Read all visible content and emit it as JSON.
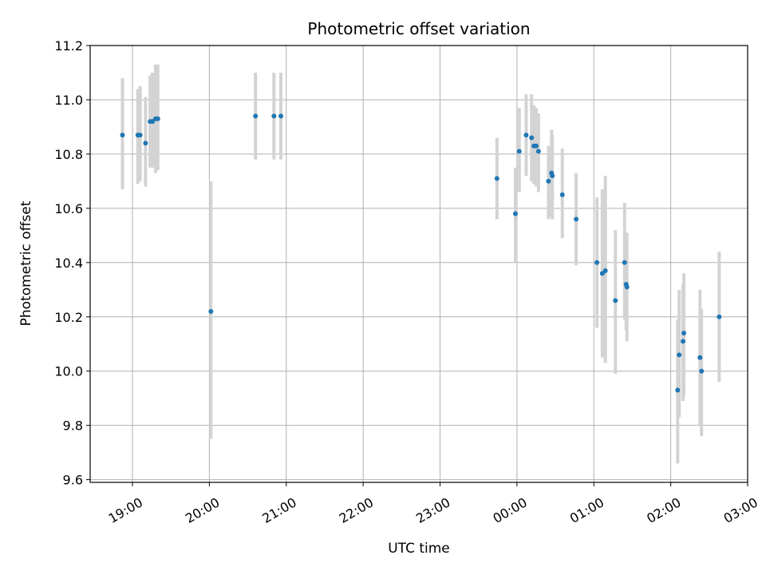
{
  "chart_data": {
    "type": "scatter",
    "title": "Photometric offset variation",
    "xlabel": "UTC time",
    "ylabel": "Photometric offset",
    "grid": true,
    "legend": "none",
    "x_unit": "hours since 19:00 UTC",
    "xlim": [
      -0.55,
      8.0
    ],
    "ylim": [
      9.59,
      11.2
    ],
    "x_ticks": [
      {
        "pos": 0,
        "label": "19:00"
      },
      {
        "pos": 1,
        "label": "20:00"
      },
      {
        "pos": 2,
        "label": "21:00"
      },
      {
        "pos": 3,
        "label": "22:00"
      },
      {
        "pos": 4,
        "label": "23:00"
      },
      {
        "pos": 5,
        "label": "00:00"
      },
      {
        "pos": 6,
        "label": "01:00"
      },
      {
        "pos": 7,
        "label": "02:00"
      },
      {
        "pos": 8,
        "label": "03:00"
      }
    ],
    "y_ticks": [
      {
        "value": 9.6,
        "label": "9.6"
      },
      {
        "value": 9.8,
        "label": "9.8"
      },
      {
        "value": 10.0,
        "label": "10.0"
      },
      {
        "value": 10.2,
        "label": "10.2"
      },
      {
        "value": 10.4,
        "label": "10.4"
      },
      {
        "value": 10.6,
        "label": "10.6"
      },
      {
        "value": 10.8,
        "label": "10.8"
      },
      {
        "value": 11.0,
        "label": "11.0"
      },
      {
        "value": 11.2,
        "label": "11.2"
      }
    ],
    "colors": {
      "point": "#1f77b4",
      "error_bar": "#d3d3d3",
      "grid": "#b0b0b0",
      "axis": "#000000"
    },
    "series": [
      {
        "name": "offset",
        "points": [
          {
            "x": -0.13,
            "y": 10.87,
            "ylow": 10.67,
            "yhigh": 11.08
          },
          {
            "x": 0.07,
            "y": 10.87,
            "ylow": 10.69,
            "yhigh": 11.04
          },
          {
            "x": 0.1,
            "y": 10.87,
            "ylow": 10.7,
            "yhigh": 11.05
          },
          {
            "x": 0.17,
            "y": 10.84,
            "ylow": 10.68,
            "yhigh": 11.01
          },
          {
            "x": 0.23,
            "y": 10.92,
            "ylow": 10.75,
            "yhigh": 11.09
          },
          {
            "x": 0.26,
            "y": 10.92,
            "ylow": 10.75,
            "yhigh": 11.1
          },
          {
            "x": 0.3,
            "y": 10.93,
            "ylow": 10.73,
            "yhigh": 11.13
          },
          {
            "x": 0.33,
            "y": 10.93,
            "ylow": 10.74,
            "yhigh": 11.13
          },
          {
            "x": 1.02,
            "y": 10.22,
            "ylow": 9.75,
            "yhigh": 10.7
          },
          {
            "x": 1.6,
            "y": 10.94,
            "ylow": 10.78,
            "yhigh": 11.1
          },
          {
            "x": 1.84,
            "y": 10.94,
            "ylow": 10.78,
            "yhigh": 11.1
          },
          {
            "x": 1.93,
            "y": 10.94,
            "ylow": 10.78,
            "yhigh": 11.1
          },
          {
            "x": 4.74,
            "y": 10.71,
            "ylow": 10.56,
            "yhigh": 10.86
          },
          {
            "x": 4.98,
            "y": 10.58,
            "ylow": 10.4,
            "yhigh": 10.75
          },
          {
            "x": 5.03,
            "y": 10.81,
            "ylow": 10.66,
            "yhigh": 10.97
          },
          {
            "x": 5.12,
            "y": 10.87,
            "ylow": 10.72,
            "yhigh": 11.02
          },
          {
            "x": 5.19,
            "y": 10.86,
            "ylow": 10.7,
            "yhigh": 11.02
          },
          {
            "x": 5.22,
            "y": 10.83,
            "ylow": 10.69,
            "yhigh": 10.98
          },
          {
            "x": 5.25,
            "y": 10.83,
            "ylow": 10.68,
            "yhigh": 10.97
          },
          {
            "x": 5.28,
            "y": 10.81,
            "ylow": 10.66,
            "yhigh": 10.95
          },
          {
            "x": 5.41,
            "y": 10.7,
            "ylow": 10.56,
            "yhigh": 10.83
          },
          {
            "x": 5.45,
            "y": 10.73,
            "ylow": 10.57,
            "yhigh": 10.89
          },
          {
            "x": 5.46,
            "y": 10.72,
            "ylow": 10.56,
            "yhigh": 10.87
          },
          {
            "x": 5.59,
            "y": 10.65,
            "ylow": 10.49,
            "yhigh": 10.82
          },
          {
            "x": 5.77,
            "y": 10.56,
            "ylow": 10.39,
            "yhigh": 10.73
          },
          {
            "x": 6.04,
            "y": 10.4,
            "ylow": 10.16,
            "yhigh": 10.64
          },
          {
            "x": 6.11,
            "y": 10.36,
            "ylow": 10.05,
            "yhigh": 10.67
          },
          {
            "x": 6.15,
            "y": 10.37,
            "ylow": 10.03,
            "yhigh": 10.72
          },
          {
            "x": 6.28,
            "y": 10.26,
            "ylow": 9.99,
            "yhigh": 10.52
          },
          {
            "x": 6.4,
            "y": 10.4,
            "ylow": 10.19,
            "yhigh": 10.62
          },
          {
            "x": 6.42,
            "y": 10.32,
            "ylow": 10.15,
            "yhigh": 10.48
          },
          {
            "x": 6.43,
            "y": 10.31,
            "ylow": 10.11,
            "yhigh": 10.51
          },
          {
            "x": 7.09,
            "y": 9.93,
            "ylow": 9.66,
            "yhigh": 10.19
          },
          {
            "x": 7.11,
            "y": 10.06,
            "ylow": 9.83,
            "yhigh": 10.3
          },
          {
            "x": 7.16,
            "y": 10.11,
            "ylow": 9.89,
            "yhigh": 10.32
          },
          {
            "x": 7.17,
            "y": 10.14,
            "ylow": 9.91,
            "yhigh": 10.36
          },
          {
            "x": 7.38,
            "y": 10.05,
            "ylow": 9.8,
            "yhigh": 10.3
          },
          {
            "x": 7.4,
            "y": 10.0,
            "ylow": 9.76,
            "yhigh": 10.23
          },
          {
            "x": 7.63,
            "y": 10.2,
            "ylow": 9.96,
            "yhigh": 10.44
          }
        ]
      }
    ]
  }
}
